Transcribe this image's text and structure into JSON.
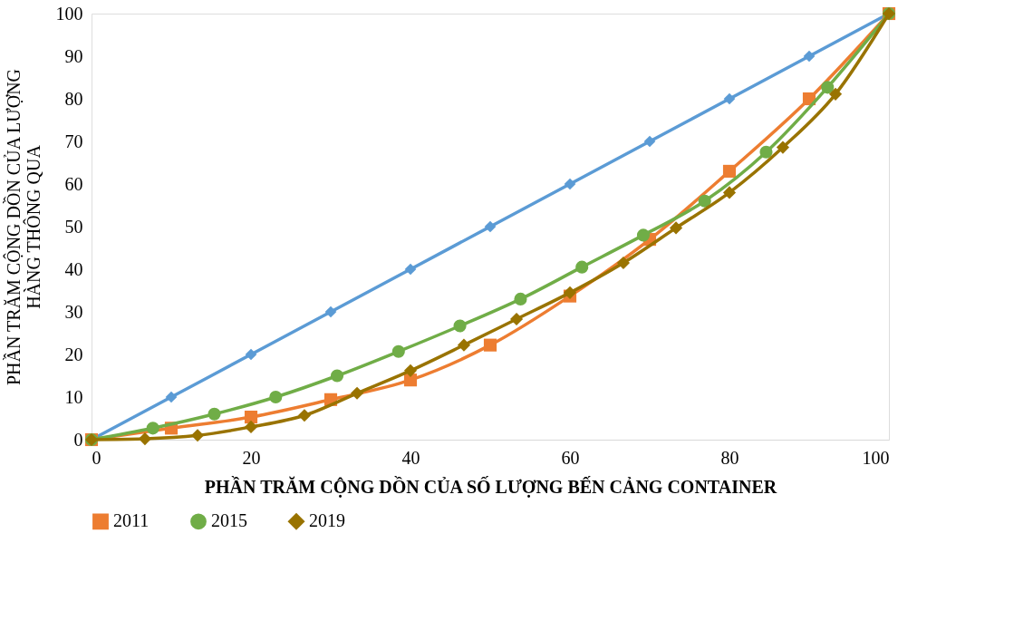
{
  "chart_data": {
    "type": "line",
    "xlabel": "PHẦN TRĂM CỘNG DỒN CỦA SỐ LƯỢNG BẾN CẢNG CONTAINER",
    "ylabel": "PHẦN TRĂM CỘNG DỒN CỦA LƯỢNG\nHÀNG THÔNG QUA",
    "xlim": [
      0,
      100
    ],
    "xticks": [
      0,
      20,
      40,
      60,
      80,
      100
    ],
    "ylim": [
      0,
      100
    ],
    "yticks": [
      0,
      10,
      20,
      30,
      40,
      50,
      60,
      70,
      80,
      90,
      100
    ],
    "grid": false,
    "legend": "bottom",
    "series": [
      {
        "color": "#5b9bd5",
        "marker": "diamond",
        "x": [
          0,
          10,
          20,
          30,
          40,
          50,
          60,
          70,
          80,
          90,
          100
        ],
        "values": [
          0,
          10,
          20,
          30,
          40,
          50,
          60,
          70,
          80,
          90,
          100
        ]
      },
      {
        "name": "2011",
        "color": "#ed7d31",
        "marker": "square",
        "x": [
          0,
          10,
          20,
          30,
          40,
          50,
          60,
          70,
          80,
          90,
          100
        ],
        "values": [
          0,
          2.7,
          5.3,
          9.4,
          14,
          22.2,
          33.7,
          47,
          63,
          80,
          100
        ]
      },
      {
        "name": "2015",
        "color": "#70ad47",
        "marker": "circle",
        "x": [
          0,
          7.7,
          15.4,
          23.1,
          30.8,
          38.5,
          46.2,
          53.8,
          61.5,
          69.2,
          76.9,
          84.6,
          92.3,
          100
        ],
        "values": [
          0,
          2.7,
          6,
          10,
          15,
          20.7,
          26.7,
          33,
          40.5,
          48,
          56,
          67.5,
          82.7,
          100
        ]
      },
      {
        "name": "2019",
        "color": "#997300",
        "marker": "diamond",
        "x": [
          0,
          6.7,
          13.3,
          20,
          26.7,
          33.3,
          40,
          46.7,
          53.3,
          60,
          66.7,
          73.3,
          80,
          86.7,
          93.3,
          100
        ],
        "values": [
          0,
          0.2,
          1,
          3,
          5.7,
          10.9,
          16.2,
          22.2,
          28.3,
          34.5,
          41.5,
          49.7,
          58,
          68.6,
          81.1,
          100
        ]
      }
    ]
  }
}
